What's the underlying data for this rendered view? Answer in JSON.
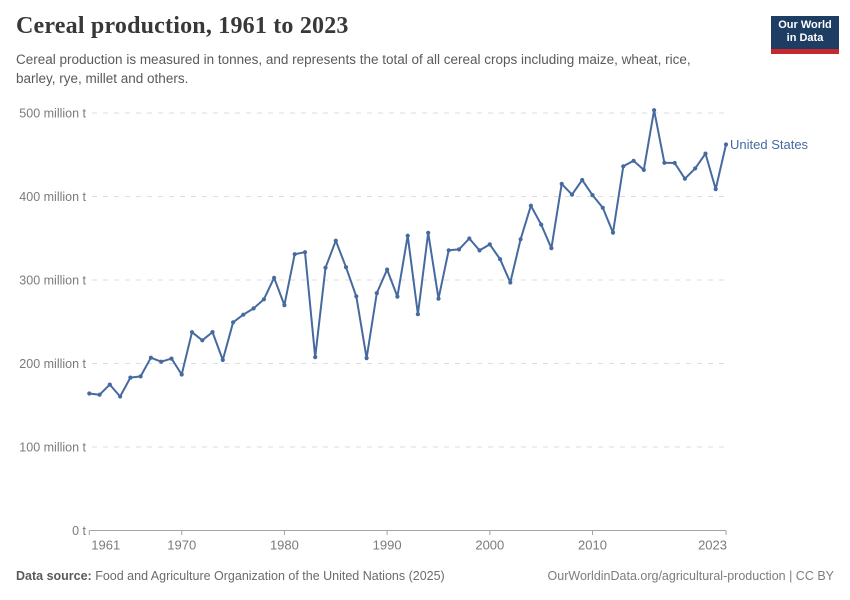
{
  "header": {
    "title": "Cereal production, 1961 to 2023",
    "subtitle": "Cereal production is measured in tonnes, and represents the total of all cereal crops including maize, wheat, rice, barley, rye, millet and others.",
    "logo": {
      "line1": "Our World",
      "line2": "in Data"
    }
  },
  "entity_label": "United States",
  "footer": {
    "source_label": "Data source:",
    "source_value": " Food and Agriculture Organization of the United Nations (2025)",
    "attribution": "OurWorldinData.org/agricultural-production | CC BY"
  },
  "colors": {
    "line": "#466a9f",
    "gridline": "#dcdcdc",
    "axis": "#a3a3a3",
    "tick_label": "#7b7b7b",
    "logo_navy": "#1d3d63",
    "logo_red": "#c5292e"
  },
  "chart_data": {
    "type": "line",
    "title": "Cereal production, 1961 to 2023",
    "unit": "tonnes",
    "xlabel": "",
    "ylabel": "",
    "xlim": [
      1961,
      2023
    ],
    "ylim": [
      0,
      500
    ],
    "grid": "horizontal-dashed",
    "legend_position": "end-of-line",
    "yticks": [
      {
        "value": 0,
        "label": "0 t"
      },
      {
        "value": 100,
        "label": "100 million t"
      },
      {
        "value": 200,
        "label": "200 million t"
      },
      {
        "value": 300,
        "label": "300 million t"
      },
      {
        "value": 400,
        "label": "400 million t"
      },
      {
        "value": 500,
        "label": "500 million t"
      }
    ],
    "xticks": [
      {
        "value": 1961,
        "label": "1961"
      },
      {
        "value": 1970,
        "label": "1970"
      },
      {
        "value": 1980,
        "label": "1980"
      },
      {
        "value": 1990,
        "label": "1990"
      },
      {
        "value": 2000,
        "label": "2000"
      },
      {
        "value": 2010,
        "label": "2010"
      },
      {
        "value": 2023,
        "label": "2023"
      }
    ],
    "series": [
      {
        "name": "United States",
        "color": "#466a9f",
        "unit": "million tonnes",
        "points": [
          [
            1961,
            164.1
          ],
          [
            1962,
            162.6
          ],
          [
            1963,
            174.7
          ],
          [
            1964,
            160.5
          ],
          [
            1965,
            183.1
          ],
          [
            1966,
            184.6
          ],
          [
            1967,
            207.0
          ],
          [
            1968,
            202.2
          ],
          [
            1969,
            205.9
          ],
          [
            1970,
            186.8
          ],
          [
            1971,
            237.5
          ],
          [
            1972,
            227.8
          ],
          [
            1973,
            237.6
          ],
          [
            1974,
            204.2
          ],
          [
            1975,
            249.3
          ],
          [
            1976,
            258.4
          ],
          [
            1977,
            266.0
          ],
          [
            1978,
            276.9
          ],
          [
            1979,
            302.6
          ],
          [
            1980,
            269.9
          ],
          [
            1981,
            330.9
          ],
          [
            1982,
            333.3
          ],
          [
            1983,
            207.7
          ],
          [
            1984,
            314.7
          ],
          [
            1985,
            347.1
          ],
          [
            1986,
            315.3
          ],
          [
            1987,
            280.4
          ],
          [
            1988,
            206.5
          ],
          [
            1989,
            284.3
          ],
          [
            1990,
            312.4
          ],
          [
            1991,
            280.1
          ],
          [
            1992,
            353.0
          ],
          [
            1993,
            259.0
          ],
          [
            1994,
            356.5
          ],
          [
            1995,
            277.6
          ],
          [
            1996,
            335.6
          ],
          [
            1997,
            336.7
          ],
          [
            1998,
            349.7
          ],
          [
            1999,
            335.4
          ],
          [
            2000,
            342.6
          ],
          [
            2001,
            324.9
          ],
          [
            2002,
            297.0
          ],
          [
            2003,
            348.7
          ],
          [
            2004,
            389.0
          ],
          [
            2005,
            366.4
          ],
          [
            2006,
            338.1
          ],
          [
            2007,
            415.1
          ],
          [
            2008,
            402.3
          ],
          [
            2009,
            419.8
          ],
          [
            2010,
            401.7
          ],
          [
            2011,
            386.5
          ],
          [
            2012,
            356.8
          ],
          [
            2013,
            436.2
          ],
          [
            2014,
            442.8
          ],
          [
            2015,
            431.9
          ],
          [
            2016,
            503.3
          ],
          [
            2017,
            440.4
          ],
          [
            2018,
            440.1
          ],
          [
            2019,
            421.3
          ],
          [
            2020,
            433.6
          ],
          [
            2021,
            451.4
          ],
          [
            2022,
            408.9
          ],
          [
            2023,
            462.3
          ]
        ]
      }
    ]
  }
}
